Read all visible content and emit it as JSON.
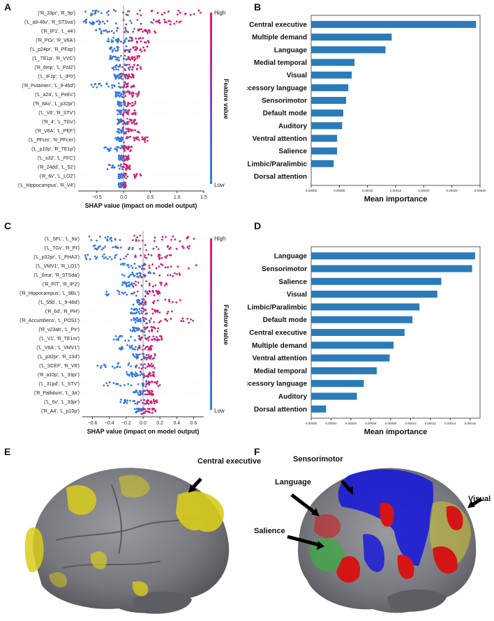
{
  "panels": {
    "A": "A",
    "B": "B",
    "C": "C",
    "D": "D",
    "E": "E",
    "F": "F"
  },
  "shap_legend": {
    "high": "High",
    "low": "Low",
    "feature_value": "Feature value"
  },
  "colors": {
    "bar": "#2b7bb9",
    "high": "#e8165e",
    "low": "#1e88e5",
    "yellow": "#d8cc1c",
    "blue": "#1b1bd6",
    "red": "#d51515",
    "green": "#3fa944"
  },
  "chart_data": [
    {
      "id": "A",
      "type": "scatter",
      "subtype": "shap-beeswarm",
      "xlabel": "SHAP value (impact on model output)",
      "xlim": [
        -0.85,
        1.5
      ],
      "xticks": [
        -0.5,
        0.0,
        0.5,
        1.0,
        1.5
      ],
      "xtick_labels": [
        "−0.5",
        "0.0",
        "0.5",
        "1.0",
        "1.5"
      ],
      "features": [
        "('R_33pr', 'R_9p')",
        "('L_a9-46v', 'R_STSva')",
        "('R_IP1', 'L_44')",
        "('R_PGi', 'R_V6A')",
        "('L_p24pr', 'R_PFop')",
        "('L_TE1p', 'R_VVC')",
        "('R_6mp', 'L_PoI2')",
        "('L_IFJp', 'L_IP0')",
        "('R_Putamen', 'L_9-46d')",
        "('L_a24', 'L_PeEc')",
        "('R_8Av', 'L_p32pr')",
        "('L_V6', 'R_STV')",
        "('R_4', 'L_TGv')",
        "('R_V6A', 'L_PEF')",
        "('L_PFcm', 'R_PFcm')",
        "('L_p10p', 'R_TE1p')",
        "('L_s32', 'L_FFC')",
        "('R_24dd', 'L_52')",
        "('R_6v', 'L_LO2')",
        "('L_Hippocampus', 'R_V4')"
      ],
      "ranges": [
        [
          -0.75,
          -0.25,
          0.5,
          1.45
        ],
        [
          -0.75,
          -0.35,
          0.55,
          1.1
        ],
        [
          -0.55,
          -0.15,
          0.25,
          0.6
        ],
        [
          -0.3,
          -0.05,
          0.15,
          0.5
        ],
        [
          -0.28,
          -0.05,
          0.15,
          0.45
        ],
        [
          -0.28,
          -0.08,
          0.12,
          0.3
        ],
        [
          -0.22,
          -0.05,
          0.12,
          0.35
        ],
        [
          -0.18,
          -0.05,
          0.05,
          0.2
        ],
        [
          -0.6,
          -0.05,
          0.05,
          0.2
        ],
        [
          -0.15,
          -0.02,
          0.1,
          0.3
        ],
        [
          -0.12,
          -0.02,
          0.06,
          0.22
        ],
        [
          -0.12,
          -0.02,
          0.05,
          0.25
        ],
        [
          -0.12,
          -0.02,
          0.08,
          0.25
        ],
        [
          -0.12,
          -0.02,
          0.08,
          0.3
        ],
        [
          -0.15,
          -0.02,
          0.2,
          0.45
        ],
        [
          -0.38,
          -0.05,
          0.02,
          0.15
        ],
        [
          -0.1,
          -0.02,
          0.05,
          0.1
        ],
        [
          -0.35,
          -0.05,
          0.05,
          0.12
        ],
        [
          -0.12,
          -0.02,
          0.05,
          0.35
        ],
        [
          -0.1,
          -0.02,
          0.02,
          0.05
        ]
      ]
    },
    {
      "id": "B",
      "type": "bar",
      "orientation": "horizontal",
      "xlabel": "Mean importance",
      "xlim": [
        0,
        0.0003
      ],
      "xticks": [
        0,
        5e-05,
        0.0001,
        0.00015,
        0.0002,
        0.00025,
        0.0003
      ],
      "xtick_labels": [
        "0.00000",
        "0.00005",
        "0.00010",
        "0.00015",
        "0.00020",
        "0.00025",
        "0.00030"
      ],
      "categories": [
        "Central executive",
        "Multiple demand",
        "Language",
        "Medial temporal",
        "Visual",
        "Accessory language",
        "Sensorimotor",
        "Default mode",
        "Auditory",
        "Ventral attention",
        "Salience",
        "Limbic/Paralimbic",
        "Dorsal attention"
      ],
      "values": [
        0.000293,
        0.000143,
        0.000132,
        7.7e-05,
        7.2e-05,
        6.6e-05,
        6.2e-05,
        5.7e-05,
        5.5e-05,
        4.6e-05,
        4.6e-05,
        4e-05,
        0.0
      ]
    },
    {
      "id": "C",
      "type": "scatter",
      "subtype": "shap-beeswarm",
      "xlabel": "SHAP value (impact on model output)",
      "xlim": [
        -0.72,
        0.72
      ],
      "xticks": [
        -0.6,
        -0.4,
        -0.2,
        0.0,
        0.2,
        0.4,
        0.6
      ],
      "xtick_labels": [
        "−0.6",
        "−0.4",
        "−0.2",
        "0.0",
        "0.2",
        "0.4",
        "0.6"
      ],
      "features": [
        "('L_SFL', 'L_9a')",
        "('L_TGv', 'R_PI')",
        "('L_p32pr', 'L_PHA3')",
        "('L_VMV1', 'R_LO1')",
        "('L_6ma', 'R_STSda')",
        "('R_PIT', 'R_IP2')",
        "('R_Hippocampus', 'L_8BL')",
        "('L_55b', 'L_9-46d')",
        "('R_6d', 'R_PH')",
        "('R_Accumbens', 'L_POS1')",
        "('R_v23ab', 'L_PIr')",
        "('L_V1', 'R_TE1m')",
        "('L_V6A', 'L_VMV1')",
        "('L_p32pr', 'R_23d')",
        "('L_SCEF', 'R_V8')",
        "('R_a10p', 'L_33pr')",
        "('L_31pd', 'L_STV')",
        "('R_Pallidum', 'L_3a')",
        "('L_6v', 'L_33pr')",
        "('R_A4', 'L_p10p')"
      ],
      "ranges": [
        [
          -0.65,
          -0.25,
          0.2,
          0.65
        ],
        [
          -0.6,
          -0.25,
          0.2,
          0.58
        ],
        [
          -0.7,
          -0.25,
          0.05,
          0.35
        ],
        [
          -0.3,
          -0.02,
          0.1,
          0.65
        ],
        [
          -0.25,
          -0.02,
          0.1,
          0.5
        ],
        [
          -0.25,
          -0.15,
          0.05,
          0.28
        ],
        [
          -0.45,
          -0.15,
          0.05,
          0.2
        ],
        [
          -0.12,
          -0.02,
          0.05,
          0.5
        ],
        [
          -0.15,
          -0.02,
          0.05,
          0.42
        ],
        [
          -0.15,
          -0.02,
          0.1,
          0.6
        ],
        [
          -0.15,
          -0.02,
          0.05,
          0.2
        ],
        [
          -0.35,
          -0.05,
          0.05,
          0.25
        ],
        [
          -0.28,
          -0.05,
          0.05,
          0.12
        ],
        [
          -0.12,
          -0.02,
          0.05,
          0.15
        ],
        [
          -0.55,
          -0.1,
          0.05,
          0.15
        ],
        [
          -0.2,
          -0.05,
          0.05,
          0.15
        ],
        [
          -0.52,
          -0.05,
          0.05,
          0.2
        ],
        [
          -0.12,
          -0.02,
          0.05,
          0.12
        ],
        [
          -0.28,
          -0.05,
          0.05,
          0.18
        ],
        [
          -0.1,
          -0.02,
          0.02,
          0.15
        ]
      ]
    },
    {
      "id": "D",
      "type": "bar",
      "orientation": "horizontal",
      "xlabel": "Mean importance",
      "xlim": [
        0,
        0.00017
      ],
      "xticks": [
        0,
        2e-05,
        4e-05,
        6e-05,
        8e-05,
        0.0001,
        0.00012,
        0.00014,
        0.00016
      ],
      "xtick_labels": [
        "0.00000",
        "0.00002",
        "0.00004",
        "0.00006",
        "0.00008",
        "0.00010",
        "0.00012",
        "0.00014",
        "0.00016"
      ],
      "categories": [
        "Language",
        "Sensorimotor",
        "Salience",
        "Visual",
        "Limbic/Paralimbic",
        "Default mode",
        "Central executive",
        "Multiple demand",
        "Ventral attention",
        "Medial temporal",
        "Accessory language",
        "Auditory",
        "Dorsal attention"
      ],
      "values": [
        0.000165,
        0.000162,
        0.000131,
        0.000127,
        0.000109,
        0.000102,
        9.4e-05,
        8.3e-05,
        7.9e-05,
        6.6e-05,
        5.3e-05,
        4.6e-05,
        1.5e-05
      ]
    }
  ],
  "brain_E": {
    "labels": {
      "central_executive": "Central executive"
    }
  },
  "brain_F": {
    "labels": {
      "sensorimotor": "Sensorimotor",
      "language": "Language",
      "salience": "Salience",
      "visual": "Visual"
    }
  }
}
